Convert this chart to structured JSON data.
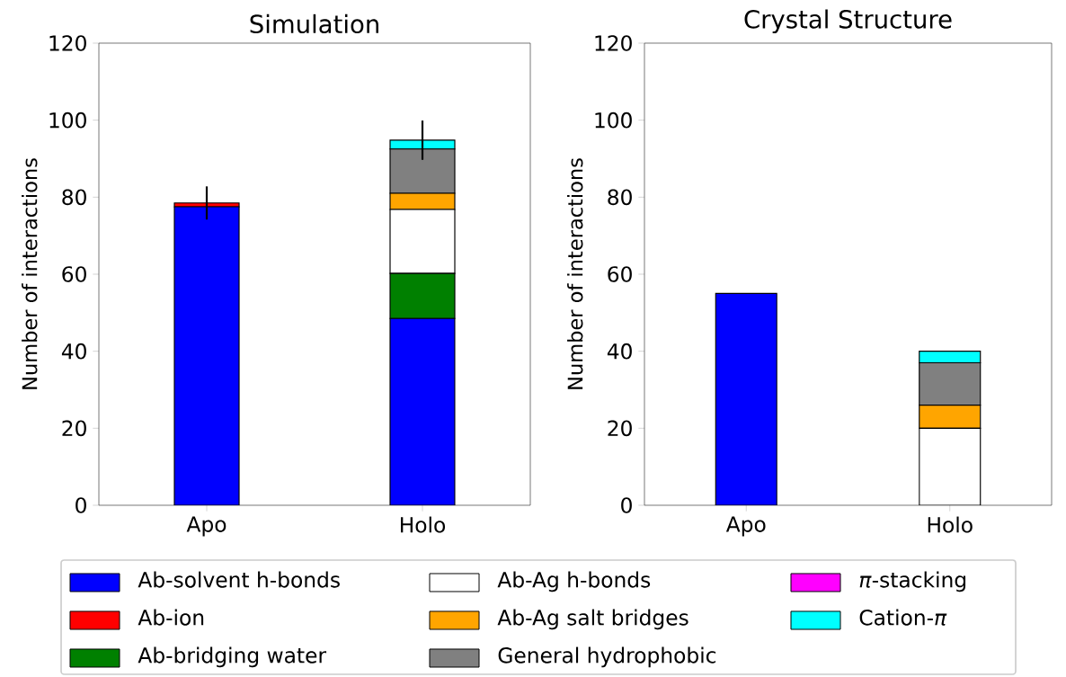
{
  "chart_data": [
    {
      "type": "bar",
      "stacked": true,
      "title": "Simulation",
      "ylabel": "Number of interactions",
      "categories": [
        "Apo",
        "Holo"
      ],
      "ylim": [
        0,
        120
      ],
      "yticks": [
        0,
        20,
        40,
        60,
        80,
        100,
        120
      ],
      "legend": "bottom",
      "series": [
        {
          "name": "Ab-solvent h-bonds",
          "color": "#0000ff",
          "values": [
            77.5,
            48.5
          ]
        },
        {
          "name": "Ab-ion",
          "color": "#ff0000",
          "values": [
            1,
            0
          ]
        },
        {
          "name": "Ab-bridging water",
          "color": "#008000",
          "values": [
            0,
            11.7
          ]
        },
        {
          "name": "Ab-Ag h-bonds",
          "color": "#ffffff",
          "values": [
            0,
            16.6
          ]
        },
        {
          "name": "Ab-Ag salt bridges",
          "color": "#ffa500",
          "values": [
            0,
            4.2
          ]
        },
        {
          "name": "General hydrophobic",
          "color": "#808080",
          "values": [
            0,
            11.5
          ]
        },
        {
          "name": "*π*-stacking",
          "color": "#ff00ff",
          "values": [
            0,
            0
          ]
        },
        {
          "name": "Cation-*π*",
          "color": "#00ffff",
          "values": [
            0,
            2.3
          ],
          "errors": [
            4.3,
            5.1
          ]
        }
      ]
    },
    {
      "type": "bar",
      "stacked": true,
      "title": "Crystal Structure",
      "ylabel": "Number of interactions",
      "categories": [
        "Apo",
        "Holo"
      ],
      "ylim": [
        0,
        120
      ],
      "yticks": [
        0,
        20,
        40,
        60,
        80,
        100,
        120
      ],
      "series": [
        {
          "color": "#0000ff",
          "values": [
            55,
            0
          ]
        },
        {
          "color": "#ff0000",
          "values": [
            0,
            0
          ]
        },
        {
          "color": "#008000",
          "values": [
            0,
            0
          ]
        },
        {
          "color": "#ffffff",
          "values": [
            0,
            20
          ]
        },
        {
          "color": "#ffa500",
          "values": [
            0,
            6
          ]
        },
        {
          "color": "#808080",
          "values": [
            0,
            11
          ]
        },
        {
          "color": "#ff00ff",
          "values": [
            0,
            0
          ]
        },
        {
          "color": "#00ffff",
          "values": [
            0,
            3
          ]
        }
      ]
    }
  ]
}
